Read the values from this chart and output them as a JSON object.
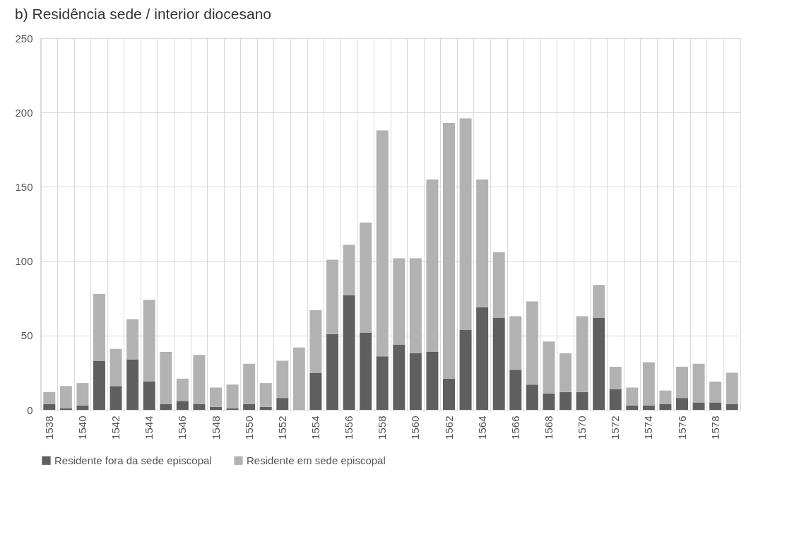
{
  "chart_data": {
    "type": "bar",
    "title": "b) Residência sede / interior diocesano",
    "stacked": true,
    "categories": [
      "1538",
      null,
      "1540",
      null,
      "1542",
      null,
      "1544",
      null,
      "1546",
      null,
      "1548",
      null,
      "1550",
      null,
      "1552",
      null,
      "1554",
      null,
      "1556",
      null,
      "1558",
      null,
      "1560",
      null,
      "1562",
      null,
      "1564",
      null,
      "1566",
      null,
      "1568",
      null,
      "1570",
      null,
      "1572",
      null,
      "1574",
      null,
      "1576",
      null,
      "1578",
      null
    ],
    "series": [
      {
        "name": "Residente fora da sede episcopal",
        "color": "#5f5f5f",
        "values": [
          4,
          1,
          3,
          33,
          16,
          34,
          19,
          4,
          6,
          4,
          2,
          1,
          4,
          2,
          8,
          0,
          25,
          51,
          77,
          52,
          36,
          44,
          38,
          39,
          21,
          54,
          69,
          62,
          27,
          17,
          11,
          12,
          12,
          62,
          14,
          3,
          3,
          4,
          8,
          5,
          5,
          4
        ]
      },
      {
        "name": "Residente em sede episcopal",
        "color": "#b2b2b2",
        "values": [
          8,
          15,
          15,
          45,
          25,
          27,
          55,
          35,
          15,
          33,
          13,
          16,
          27,
          16,
          25,
          42,
          42,
          50,
          34,
          74,
          152,
          58,
          64,
          116,
          172,
          142,
          86,
          44,
          36,
          56,
          35,
          26,
          51,
          22,
          15,
          12,
          29,
          9,
          21,
          26,
          14,
          21
        ]
      }
    ],
    "ylim": [
      0,
      250
    ],
    "yticks": [
      0,
      50,
      100,
      150,
      200,
      250
    ],
    "grid": true,
    "legend": "bottom"
  }
}
